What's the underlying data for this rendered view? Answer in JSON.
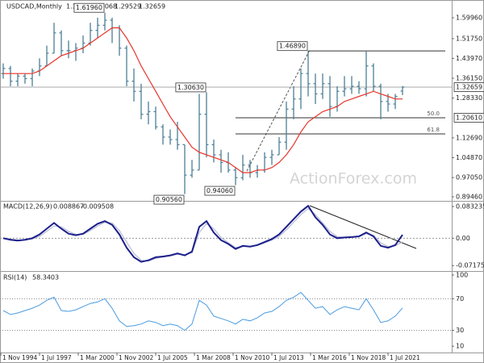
{
  "chart_data": [
    {
      "type": "ohlc",
      "title": "USDCAD,Monthly",
      "color": "#4b7f95",
      "x": [
        "1 Jan 1995",
        "1 Jul 1995",
        "1 Jan 1996",
        "1 Jul 1996",
        "1 Jan 1997",
        "1 Jul 1997",
        "1 Jan 1998",
        "1 Jul 1998",
        "1 Jan 1999",
        "1 Jul 1999",
        "1 Jan 2000",
        "1 Jul 2000",
        "1 Jan 2001",
        "1 Jul 2001",
        "1 Jan 2002",
        "1 Jul 2002",
        "1 Jan 2003",
        "1 Jul 2003",
        "1 Jan 2004",
        "1 Jul 2004",
        "1 Jan 2005",
        "1 Jul 2005",
        "1 Jan 2006",
        "1 Jul 2006",
        "1 Jan 2007",
        "1 Jul 2007",
        "1 Jan 2008",
        "1 Jul 2008",
        "1 Jan 2009",
        "1 Jul 2009",
        "1 Jan 2010",
        "1 Jul 2010",
        "1 Jan 2011",
        "1 Jul 2011",
        "1 Jan 2012",
        "1 Jul 2012",
        "1 Jan 2013",
        "1 Jul 2013",
        "1 Jan 2014",
        "1 Jul 2014",
        "1 Jan 2015",
        "1 Jul 2015",
        "1 Jan 2016",
        "1 Jul 2016",
        "1 Jan 2017",
        "1 Jul 2017",
        "1 Jan 2018",
        "1 Jul 2018",
        "1 Jan 2019",
        "1 Jul 2019",
        "1 Jan 2020",
        "1 Jul 2020",
        "1 Jan 2021",
        "1 Jul 2021",
        "1 Jan 2022",
        "1 Jul 2022"
      ],
      "open": [
        1.38,
        1.4,
        1.35,
        1.37,
        1.36,
        1.39,
        1.41,
        1.46,
        1.54,
        1.47,
        1.47,
        1.48,
        1.5,
        1.55,
        1.57,
        1.59,
        1.56,
        1.48,
        1.35,
        1.31,
        1.22,
        1.23,
        1.17,
        1.13,
        1.12,
        1.1,
        0.98,
        1.0,
        1.22,
        1.1,
        1.06,
        1.03,
        1.0,
        0.97,
        1.02,
        0.99,
        1.0,
        1.05,
        1.06,
        1.11,
        1.24,
        1.28,
        1.38,
        1.34,
        1.3,
        1.34,
        1.25,
        1.31,
        1.32,
        1.33,
        1.32,
        1.41,
        1.33,
        1.27,
        1.26,
        1.31107
      ],
      "high": [
        1.42,
        1.41,
        1.38,
        1.38,
        1.4,
        1.44,
        1.49,
        1.58,
        1.55,
        1.51,
        1.5,
        1.53,
        1.58,
        1.6,
        1.6196,
        1.6,
        1.57,
        1.49,
        1.4,
        1.34,
        1.27,
        1.25,
        1.18,
        1.16,
        1.19,
        1.1,
        1.04,
        1.3,
        1.3063,
        1.12,
        1.08,
        1.07,
        1.01,
        1.06,
        1.04,
        1.02,
        1.07,
        1.08,
        1.13,
        1.27,
        1.33,
        1.4,
        1.4689,
        1.38,
        1.38,
        1.37,
        1.33,
        1.37,
        1.37,
        1.35,
        1.4667,
        1.42,
        1.34,
        1.3,
        1.3,
        1.33068
      ],
      "low": [
        1.36,
        1.33,
        1.33,
        1.34,
        1.33,
        1.37,
        1.41,
        1.46,
        1.45,
        1.44,
        1.43,
        1.46,
        1.49,
        1.52,
        1.55,
        1.5,
        1.45,
        1.33,
        1.27,
        1.2,
        1.18,
        1.16,
        1.1,
        1.1,
        1.08,
        0.9056,
        0.97,
        1.0,
        1.05,
        1.03,
        0.99,
        0.99,
        0.9406,
        0.96,
        0.97,
        0.97,
        0.99,
        1.02,
        1.06,
        1.08,
        1.2,
        1.24,
        1.29,
        1.26,
        1.28,
        1.21,
        1.23,
        1.29,
        1.3,
        1.3,
        1.29,
        1.31,
        1.2,
        1.23,
        1.24,
        1.29529
      ],
      "close": [
        1.4,
        1.35,
        1.37,
        1.36,
        1.39,
        1.41,
        1.46,
        1.54,
        1.47,
        1.47,
        1.48,
        1.5,
        1.55,
        1.57,
        1.59,
        1.56,
        1.48,
        1.35,
        1.31,
        1.22,
        1.23,
        1.17,
        1.13,
        1.12,
        1.1,
        0.98,
        1.0,
        1.22,
        1.1,
        1.06,
        1.03,
        1.0,
        0.97,
        1.02,
        0.99,
        1.0,
        1.05,
        1.06,
        1.11,
        1.24,
        1.28,
        1.38,
        1.34,
        1.3,
        1.34,
        1.25,
        1.31,
        1.32,
        1.33,
        1.32,
        1.41,
        1.33,
        1.27,
        1.26,
        1.29,
        1.32659
      ],
      "moving_average": {
        "color": "#e8352b",
        "values": [
          1.38,
          1.38,
          1.38,
          1.38,
          1.38,
          1.39,
          1.41,
          1.43,
          1.45,
          1.46,
          1.47,
          1.48,
          1.5,
          1.52,
          1.54,
          1.56,
          1.56,
          1.52,
          1.47,
          1.41,
          1.36,
          1.31,
          1.26,
          1.21,
          1.17,
          1.13,
          1.09,
          1.07,
          1.06,
          1.05,
          1.04,
          1.03,
          1.01,
          0.99,
          0.99,
          1.0,
          1.0,
          1.01,
          1.03,
          1.06,
          1.1,
          1.15,
          1.19,
          1.21,
          1.23,
          1.24,
          1.25,
          1.27,
          1.28,
          1.29,
          1.3,
          1.31,
          1.3,
          1.29,
          1.28,
          1.28
        ]
      },
      "ylim": [
        0.882,
        1.66
      ],
      "yticks": [
        {
          "value": 1.5996,
          "label": "1.59960"
        },
        {
          "value": 1.5175,
          "label": "1.51750"
        },
        {
          "value": 1.4397,
          "label": "1.43970"
        },
        {
          "value": 1.3615,
          "label": "1.36150"
        },
        {
          "value": 1.2833,
          "label": "1.28330"
        },
        {
          "value": 1.1269,
          "label": "1.12690"
        },
        {
          "value": 1.0487,
          "label": "1.04870"
        },
        {
          "value": 0.9705,
          "label": "0.97050"
        },
        {
          "value": 0.8946,
          "label": "0.89460"
        }
      ],
      "annotations": [
        {
          "x": "1 Jan 2002",
          "value": 1.6196,
          "label": "1.61960"
        },
        {
          "x": "1 Jan 2009",
          "value": 1.3063,
          "label": "1.30630"
        },
        {
          "x": "1 Jul 2007",
          "value": 0.9056,
          "label": "0.90560"
        },
        {
          "x": "1 Jan 2011",
          "value": 0.9406,
          "label": "0.94060"
        },
        {
          "x": "1 Jan 2016",
          "value": 1.4689,
          "label": "1.46890"
        }
      ],
      "fib_levels": [
        {
          "level": "50.0",
          "value": 1.2061,
          "value_label": "1.20610"
        },
        {
          "level": "61.8",
          "value": 1.1424
        }
      ],
      "watermark": "ActionForex.com"
    },
    {
      "type": "macd",
      "title": "MACD(12,26,9)",
      "x": [
        "1 Jan 1995",
        "1 Jul 1995",
        "1 Jan 1996",
        "1 Jul 1996",
        "1 Jan 1997",
        "1 Jul 1997",
        "1 Jan 1998",
        "1 Jul 1998",
        "1 Jan 1999",
        "1 Jul 1999",
        "1 Jan 2000",
        "1 Jul 2000",
        "1 Jan 2001",
        "1 Jul 2001",
        "1 Jan 2002",
        "1 Jul 2002",
        "1 Jan 2003",
        "1 Jul 2003",
        "1 Jan 2004",
        "1 Jul 2004",
        "1 Jan 2005",
        "1 Jul 2005",
        "1 Jan 2006",
        "1 Jul 2006",
        "1 Jan 2007",
        "1 Jul 2007",
        "1 Jan 2008",
        "1 Jul 2008",
        "1 Jan 2009",
        "1 Jul 2009",
        "1 Jan 2010",
        "1 Jul 2010",
        "1 Jan 2011",
        "1 Jul 2011",
        "1 Jan 2012",
        "1 Jul 2012",
        "1 Jan 2013",
        "1 Jul 2013",
        "1 Jan 2014",
        "1 Jul 2014",
        "1 Jan 2015",
        "1 Jul 2015",
        "1 Jan 2016",
        "1 Jul 2016",
        "1 Jan 2017",
        "1 Jul 2017",
        "1 Jan 2018",
        "1 Jul 2018",
        "1 Jan 2019",
        "1 Jul 2019",
        "1 Jan 2020",
        "1 Jul 2020",
        "1 Jan 2021",
        "1 Jul 2021",
        "1 Jan 2022",
        "1 Jul 2022"
      ],
      "series": [
        {
          "color": "#b9bcd8",
          "values": [
            0.001,
            -0.002,
            -0.005,
            -0.005,
            -0.002,
            0.005,
            0.018,
            0.032,
            0.03,
            0.018,
            0.01,
            0.01,
            0.02,
            0.032,
            0.042,
            0.04,
            0.02,
            -0.01,
            -0.04,
            -0.058,
            -0.06,
            -0.053,
            -0.049,
            -0.046,
            -0.042,
            -0.043,
            -0.038,
            0.015,
            0.038,
            0.025,
            0.002,
            -0.012,
            -0.024,
            -0.022,
            -0.021,
            -0.019,
            -0.012,
            -0.005,
            0.005,
            0.022,
            0.042,
            0.062,
            0.078,
            0.062,
            0.04,
            0.018,
            0.004,
            0.002,
            0.003,
            0.004,
            0.012,
            0.008,
            -0.012,
            -0.022,
            -0.02,
            -0.009508
          ]
        },
        {
          "color": "#1b1f8a",
          "values": [
            0.0,
            -0.004,
            -0.006,
            -0.004,
            0.0,
            0.01,
            0.025,
            0.04,
            0.025,
            0.012,
            0.008,
            0.012,
            0.025,
            0.038,
            0.045,
            0.035,
            0.01,
            -0.025,
            -0.05,
            -0.062,
            -0.058,
            -0.05,
            -0.048,
            -0.045,
            -0.04,
            -0.045,
            -0.035,
            0.03,
            0.045,
            0.015,
            -0.005,
            -0.015,
            -0.028,
            -0.02,
            -0.022,
            -0.018,
            -0.01,
            -0.002,
            0.01,
            0.03,
            0.05,
            0.07,
            0.085,
            0.055,
            0.035,
            0.01,
            0.0,
            0.002,
            0.003,
            0.005,
            0.015,
            0.005,
            -0.02,
            -0.025,
            -0.018,
            0.008867
          ]
        }
      ],
      "ylim": [
        -0.084,
        0.096
      ],
      "yticks": [
        0.083235,
        {
          "value": 0,
          "label": "0.00"
        },
        -0.071752
      ]
    },
    {
      "type": "rsi",
      "title": "RSI(14)",
      "color": "#4a9be0",
      "x": [
        "1 Jan 1995",
        "1 Jul 1995",
        "1 Jan 1996",
        "1 Jul 1996",
        "1 Jan 1997",
        "1 Jul 1997",
        "1 Jan 1998",
        "1 Jul 1998",
        "1 Jan 1999",
        "1 Jul 1999",
        "1 Jan 2000",
        "1 Jul 2000",
        "1 Jan 2001",
        "1 Jul 2001",
        "1 Jan 2002",
        "1 Jul 2002",
        "1 Jan 2003",
        "1 Jul 2003",
        "1 Jan 2004",
        "1 Jul 2004",
        "1 Jan 2005",
        "1 Jul 2005",
        "1 Jan 2006",
        "1 Jul 2006",
        "1 Jan 2007",
        "1 Jul 2007",
        "1 Jan 2008",
        "1 Jul 2008",
        "1 Jan 2009",
        "1 Jul 2009",
        "1 Jan 2010",
        "1 Jul 2010",
        "1 Jan 2011",
        "1 Jul 2011",
        "1 Jan 2012",
        "1 Jul 2012",
        "1 Jan 2013",
        "1 Jul 2013",
        "1 Jan 2014",
        "1 Jul 2014",
        "1 Jan 2015",
        "1 Jul 2015",
        "1 Jan 2016",
        "1 Jul 2016",
        "1 Jan 2017",
        "1 Jul 2017",
        "1 Jan 2018",
        "1 Jul 2018",
        "1 Jan 2019",
        "1 Jul 2019",
        "1 Jan 2020",
        "1 Jul 2020",
        "1 Jan 2021",
        "1 Jul 2021",
        "1 Jan 2022",
        "1 Jul 2022"
      ],
      "values": [
        55,
        50,
        52,
        55,
        58,
        62,
        68,
        72,
        55,
        54,
        56,
        60,
        64,
        66,
        70,
        58,
        42,
        35,
        36,
        38,
        42,
        40,
        36,
        38,
        36,
        30,
        38,
        68,
        62,
        48,
        45,
        42,
        38,
        44,
        42,
        46,
        52,
        54,
        60,
        68,
        72,
        78,
        68,
        58,
        60,
        50,
        56,
        60,
        58,
        56,
        70,
        56,
        40,
        42,
        48,
        58.3403
      ],
      "ylim": [
        3,
        103
      ],
      "yticks": [
        100,
        70,
        30,
        10
      ],
      "grid_lines": [
        70,
        30
      ],
      "xticks": [
        "1 Nov 1994",
        "1 Jul 1997",
        "1 Mar 2000",
        "1 Nov 2002",
        "1 Jul 2005",
        "1 Mar 2008",
        "1 Nov 2010",
        "1 Jul 2013",
        "1 Mar 2016",
        "1 Nov 2018",
        "1 Jul 2021"
      ]
    }
  ]
}
